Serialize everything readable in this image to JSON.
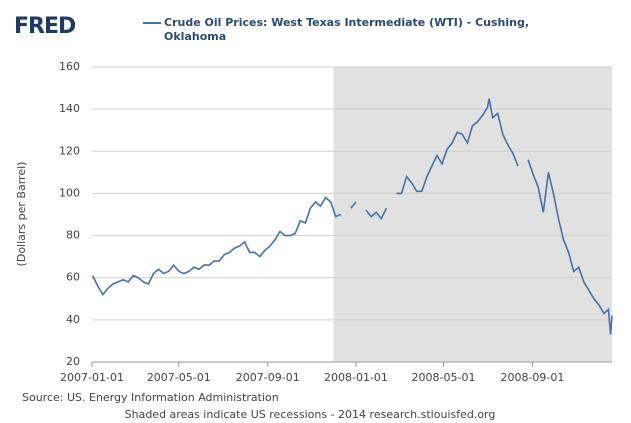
{
  "logo": "FRED",
  "chart_data": {
    "type": "line",
    "title": "Crude Oil Prices: West Texas Intermediate (WTI) - Cushing, Oklahoma",
    "y_label": "(Dollars per Barrel)",
    "source": "Source: US. Energy Information Administration",
    "footnote": "Shaded areas indicate US recessions - 2014 research.stlouisfed.org",
    "xlim": [
      "2007-01-01",
      "2008-12-20"
    ],
    "xticks": [
      "2007-01-01",
      "2007-05-01",
      "2007-09-01",
      "2008-01-01",
      "2008-05-01",
      "2008-09-01"
    ],
    "ylim": [
      20,
      160
    ],
    "yticks": [
      20,
      40,
      60,
      80,
      100,
      120,
      140,
      160
    ],
    "grid": true,
    "recession": {
      "start": "2007-12-01",
      "end": "2008-12-20",
      "color": "#e1e1e1"
    },
    "x": [
      "2007-01-02",
      "2007-01-09",
      "2007-01-16",
      "2007-01-23",
      "2007-01-30",
      "2007-02-06",
      "2007-02-13",
      "2007-02-20",
      "2007-02-27",
      "2007-03-06",
      "2007-03-13",
      "2007-03-20",
      "2007-03-27",
      "2007-04-03",
      "2007-04-10",
      "2007-04-17",
      "2007-04-24",
      "2007-05-01",
      "2007-05-08",
      "2007-05-15",
      "2007-05-22",
      "2007-05-29",
      "2007-06-05",
      "2007-06-12",
      "2007-06-19",
      "2007-06-26",
      "2007-07-03",
      "2007-07-10",
      "2007-07-17",
      "2007-07-24",
      "2007-07-31",
      "2007-08-07",
      "2007-08-14",
      "2007-08-21",
      "2007-08-28",
      "2007-09-04",
      "2007-09-11",
      "2007-09-18",
      "2007-09-25",
      "2007-10-02",
      "2007-10-09",
      "2007-10-16",
      "2007-10-23",
      "2007-10-30",
      "2007-11-06",
      "2007-11-13",
      "2007-11-20",
      "2007-11-27",
      "2007-12-04",
      "2007-12-11",
      "2007-12-18",
      "2007-12-25",
      "2008-01-01",
      "2008-01-08",
      "2008-01-15",
      "2008-01-22",
      "2008-01-29",
      "2008-02-05",
      "2008-02-12",
      "2008-02-19",
      "2008-02-26",
      "2008-03-04",
      "2008-03-11",
      "2008-03-18",
      "2008-03-25",
      "2008-04-01",
      "2008-04-08",
      "2008-04-15",
      "2008-04-22",
      "2008-04-29",
      "2008-05-06",
      "2008-05-13",
      "2008-05-20",
      "2008-05-27",
      "2008-06-03",
      "2008-06-10",
      "2008-06-17",
      "2008-06-24",
      "2008-07-01",
      "2008-07-03",
      "2008-07-08",
      "2008-07-15",
      "2008-07-22",
      "2008-07-29",
      "2008-08-05",
      "2008-08-12",
      "2008-08-19",
      "2008-08-26",
      "2008-09-02",
      "2008-09-09",
      "2008-09-16",
      "2008-09-23",
      "2008-09-30",
      "2008-10-07",
      "2008-10-14",
      "2008-10-21",
      "2008-10-28",
      "2008-11-04",
      "2008-11-11",
      "2008-11-18",
      "2008-11-25",
      "2008-12-02",
      "2008-12-09",
      "2008-12-15",
      "2008-12-18",
      "2008-12-20"
    ],
    "series": [
      {
        "name": "Crude Oil Prices: West Texas Intermediate (WTI) - Cushing, Oklahoma",
        "color": "#4572a7",
        "values": [
          61,
          56,
          52,
          55,
          57,
          58,
          59,
          58,
          61,
          60,
          58,
          57,
          62,
          64,
          62,
          63,
          66,
          63,
          62,
          63,
          65,
          64,
          66,
          66,
          68,
          68,
          71,
          72,
          74,
          75,
          77,
          72,
          72,
          70,
          73,
          75,
          78,
          82,
          80,
          80,
          81,
          87,
          86,
          93,
          96,
          94,
          98,
          96,
          89,
          90,
          null,
          93,
          96,
          null,
          92,
          89,
          91,
          88,
          93,
          null,
          100,
          100,
          108,
          105,
          101,
          101,
          108,
          113,
          118,
          114,
          121,
          124,
          129,
          128,
          124,
          132,
          134,
          137,
          141,
          145,
          136,
          138,
          128,
          123,
          119,
          113,
          null,
          116,
          109,
          103,
          91,
          110,
          100,
          88,
          78,
          72,
          63,
          65,
          58,
          54,
          50,
          47,
          43,
          45,
          33,
          42
        ]
      }
    ]
  }
}
